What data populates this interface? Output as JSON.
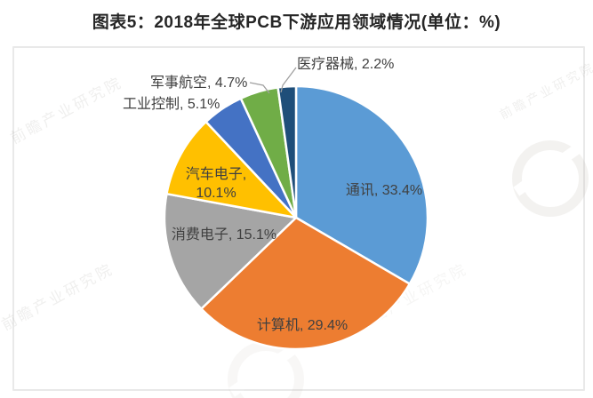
{
  "title": "图表5：2018年全球PCB下游应用领域情况(单位：%)",
  "watermark": {
    "text": "前瞻产业研究院"
  },
  "chart_data": {
    "type": "pie",
    "title": "2018年全球PCB下游应用领域情况",
    "unit": "%",
    "start_angle_deg": 0,
    "direction": "clockwise",
    "legend": "none (direct data labels)",
    "slices": [
      {
        "name": "通讯",
        "value": 33.4,
        "label": "通讯, 33.4%",
        "color": "#5B9BD5"
      },
      {
        "name": "计算机",
        "value": 29.4,
        "label": "计算机, 29.4%",
        "color": "#ED7D31"
      },
      {
        "name": "消费电子",
        "value": 15.1,
        "label": "消费电子, 15.1%",
        "color": "#A5A5A5"
      },
      {
        "name": "汽车电子",
        "value": 10.1,
        "label": "汽车电子, 10.1%",
        "color": "#FFC000"
      },
      {
        "name": "工业控制",
        "value": 5.1,
        "label": "工业控制, 5.1%",
        "color": "#4472C4"
      },
      {
        "name": "军事航空",
        "value": 4.7,
        "label": "军事航空, 4.7%",
        "color": "#70AD47"
      },
      {
        "name": "医疗器械",
        "value": 2.2,
        "label": "医疗器械, 2.2%",
        "color": "#1F4E79"
      }
    ]
  }
}
